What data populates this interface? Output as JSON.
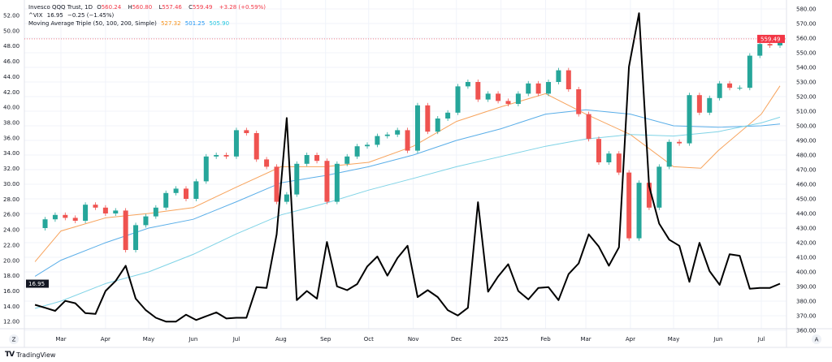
{
  "legend": {
    "symbol": "Invesco QQQ Trust, 1D",
    "o_label": "O",
    "o": "560.24",
    "h_label": "H",
    "h": "560.80",
    "l_label": "L",
    "l": "557.46",
    "c_label": "C",
    "c": "559.49",
    "change": "+3.28 (+0.59%)",
    "vix_name": "^VIX",
    "vix_value": "16.95",
    "vix_change": "−0.25 (−1.45%)",
    "ma_name": "Moving Average Triple (50, 100, 200, Simple)",
    "ma50": "527.32",
    "ma100": "501.25",
    "ma200": "505.90"
  },
  "branding": "TradingView",
  "colors": {
    "up": "#26a69a",
    "down": "#ef5350",
    "ma50": "#f7a35c",
    "ma100": "#5aaee8",
    "ma200": "#7fd3e6",
    "vix": "#000000",
    "last_price": "#f23645"
  },
  "chart_data": {
    "type": "candlestick+line",
    "right_axis": {
      "ylim": [
        360,
        580
      ],
      "ticks": [
        "580.00",
        "570.00",
        "560.00",
        "550.00",
        "540.00",
        "530.00",
        "520.00",
        "510.00",
        "500.00",
        "490.00",
        "480.00",
        "470.00",
        "460.00",
        "450.00",
        "440.00",
        "430.00",
        "420.00",
        "410.00",
        "400.00",
        "390.00",
        "380.00",
        "370.00",
        "360.00"
      ],
      "last_price_label": "559.49",
      "last_price": 559.49,
      "auto_button": "A"
    },
    "left_axis": {
      "ylim": [
        11.5,
        52.5
      ],
      "ticks": [
        "52.00",
        "50.00",
        "48.00",
        "46.00",
        "44.00",
        "42.00",
        "40.00",
        "38.00",
        "36.00",
        "34.00",
        "32.00",
        "30.00",
        "28.00",
        "26.00",
        "24.00",
        "22.00",
        "20.00",
        "18.00",
        "16.00",
        "14.00",
        "12.00"
      ],
      "last_value_label": "16.95",
      "zoom_button": "Z"
    },
    "x_ticks": [
      {
        "label": "Mar",
        "date": "2024-03-01"
      },
      {
        "label": "Apr",
        "date": "2024-04-01"
      },
      {
        "label": "May",
        "date": "2024-05-01"
      },
      {
        "label": "Jun",
        "date": "2024-06-01"
      },
      {
        "label": "Jul",
        "date": "2024-07-01"
      },
      {
        "label": "Aug",
        "date": "2024-08-01"
      },
      {
        "label": "Sep",
        "date": "2024-09-01"
      },
      {
        "label": "Oct",
        "date": "2024-10-01"
      },
      {
        "label": "Nov",
        "date": "2024-11-01"
      },
      {
        "label": "Dec",
        "date": "2024-12-01"
      },
      {
        "label": "2025",
        "date": "2025-01-01"
      },
      {
        "label": "Feb",
        "date": "2025-02-01"
      },
      {
        "label": "Mar",
        "date": "2025-03-01"
      },
      {
        "label": "Apr",
        "date": "2025-04-01"
      },
      {
        "label": "May",
        "date": "2025-05-01"
      },
      {
        "label": "Jun",
        "date": "2025-06-01"
      },
      {
        "label": "Jul",
        "date": "2025-07-01"
      }
    ],
    "dates": [
      "2024-02-12",
      "2024-02-19",
      "2024-02-26",
      "2024-03-04",
      "2024-03-11",
      "2024-03-18",
      "2024-03-25",
      "2024-04-01",
      "2024-04-08",
      "2024-04-15",
      "2024-04-22",
      "2024-04-29",
      "2024-05-06",
      "2024-05-13",
      "2024-05-20",
      "2024-05-27",
      "2024-06-03",
      "2024-06-10",
      "2024-06-17",
      "2024-06-24",
      "2024-07-01",
      "2024-07-08",
      "2024-07-15",
      "2024-07-22",
      "2024-07-29",
      "2024-08-05",
      "2024-08-12",
      "2024-08-19",
      "2024-08-26",
      "2024-09-02",
      "2024-09-09",
      "2024-09-16",
      "2024-09-23",
      "2024-09-30",
      "2024-10-07",
      "2024-10-14",
      "2024-10-21",
      "2024-10-28",
      "2024-11-04",
      "2024-11-11",
      "2024-11-18",
      "2024-11-25",
      "2024-12-02",
      "2024-12-09",
      "2024-12-16",
      "2024-12-23",
      "2024-12-30",
      "2025-01-06",
      "2025-01-13",
      "2025-01-20",
      "2025-01-27",
      "2025-02-03",
      "2025-02-10",
      "2025-02-17",
      "2025-02-24",
      "2025-03-03",
      "2025-03-10",
      "2025-03-17",
      "2025-03-24",
      "2025-03-31",
      "2025-04-07",
      "2025-04-14",
      "2025-04-21",
      "2025-04-28",
      "2025-05-05",
      "2025-05-12",
      "2025-05-19",
      "2025-05-26",
      "2025-06-02",
      "2025-06-09",
      "2025-06-16",
      "2025-06-23",
      "2025-06-30",
      "2025-07-07",
      "2025-07-14"
    ],
    "series": [
      {
        "name": "Invesco QQQ Trust",
        "axis": "right",
        "kind": "close",
        "values": [
          430,
          436,
          439,
          437,
          435,
          446,
          444,
          440,
          442,
          415,
          432,
          438,
          444,
          454,
          457,
          450,
          462,
          479,
          480,
          479,
          497,
          495,
          477,
          472,
          448,
          453,
          474,
          480,
          476,
          448,
          474,
          479,
          486,
          487,
          493,
          494,
          497,
          483,
          514,
          496,
          505,
          509,
          527,
          530,
          518,
          522,
          517,
          515,
          522,
          529,
          522,
          530,
          538,
          525,
          508,
          491,
          475,
          481,
          468,
          423,
          461,
          444,
          472,
          489,
          488,
          521,
          509,
          519,
          529,
          526,
          526,
          548,
          556,
          555,
          559.49
        ]
      },
      {
        "name": "^VIX",
        "axis": "left",
        "values": [
          14.2,
          13.8,
          13.4,
          14.7,
          14.4,
          13.1,
          13.0,
          16.0,
          17.3,
          19.3,
          15.0,
          13.5,
          12.5,
          12.0,
          12.0,
          12.9,
          12.2,
          12.7,
          13.2,
          12.4,
          12.5,
          12.5,
          16.5,
          16.4,
          23.4,
          38.6,
          14.8,
          16.0,
          15.0,
          22.4,
          16.6,
          16.1,
          16.9,
          19.2,
          20.5,
          18.0,
          20.3,
          21.9,
          15.2,
          16.1,
          15.2,
          13.5,
          12.8,
          13.8,
          27.6,
          15.9,
          17.9,
          19.5,
          16.0,
          14.9,
          16.4,
          16.5,
          14.8,
          18.2,
          19.6,
          23.4,
          21.8,
          19.3,
          21.7,
          45.3,
          52.3,
          29.7,
          24.8,
          22.7,
          21.9,
          17.2,
          22.3,
          18.6,
          16.8,
          20.8,
          20.6,
          16.3,
          16.4,
          16.4,
          16.95
        ]
      }
    ],
    "moving_averages": [
      {
        "name": "MA 50",
        "axis": "right",
        "dates": [
          "2024-02-12",
          "2024-03-01",
          "2024-04-01",
          "2024-05-01",
          "2024-06-01",
          "2024-07-01",
          "2024-08-01",
          "2024-09-01",
          "2024-10-01",
          "2024-11-01",
          "2024-12-01",
          "2025-01-01",
          "2025-02-01",
          "2025-03-01",
          "2025-04-01",
          "2025-05-01",
          "2025-05-20",
          "2025-06-01",
          "2025-07-01",
          "2025-07-14"
        ],
        "values": [
          407,
          428,
          437,
          440,
          444,
          458,
          472,
          472,
          475,
          486,
          503,
          513,
          522,
          508,
          494,
          472,
          471,
          483,
          508,
          527.32
        ]
      },
      {
        "name": "MA 100",
        "axis": "right",
        "dates": [
          "2024-02-12",
          "2024-03-01",
          "2024-04-01",
          "2024-05-01",
          "2024-06-01",
          "2024-07-01",
          "2024-08-01",
          "2024-09-01",
          "2024-10-01",
          "2024-11-01",
          "2024-12-01",
          "2025-01-01",
          "2025-02-01",
          "2025-03-01",
          "2025-04-01",
          "2025-05-01",
          "2025-06-01",
          "2025-07-01",
          "2025-07-14"
        ],
        "values": [
          397,
          408,
          420,
          430,
          436,
          448,
          461,
          466,
          472,
          480,
          490,
          498,
          508,
          511,
          508,
          500,
          499,
          500,
          501.25
        ]
      },
      {
        "name": "MA 200",
        "axis": "right",
        "dates": [
          "2024-02-12",
          "2024-03-01",
          "2024-04-01",
          "2024-05-01",
          "2024-06-01",
          "2024-07-01",
          "2024-08-01",
          "2024-09-01",
          "2024-10-01",
          "2024-11-01",
          "2024-12-01",
          "2025-01-01",
          "2025-02-01",
          "2025-03-01",
          "2025-04-01",
          "2025-05-01",
          "2025-06-01",
          "2025-07-01",
          "2025-07-14"
        ],
        "values": [
          375,
          380,
          392,
          400,
          412,
          426,
          439,
          447,
          456,
          464,
          472,
          479,
          486,
          491,
          494,
          493,
          496,
          502,
          505.9
        ]
      }
    ],
    "grid": true,
    "legend_placement": "top-left"
  }
}
